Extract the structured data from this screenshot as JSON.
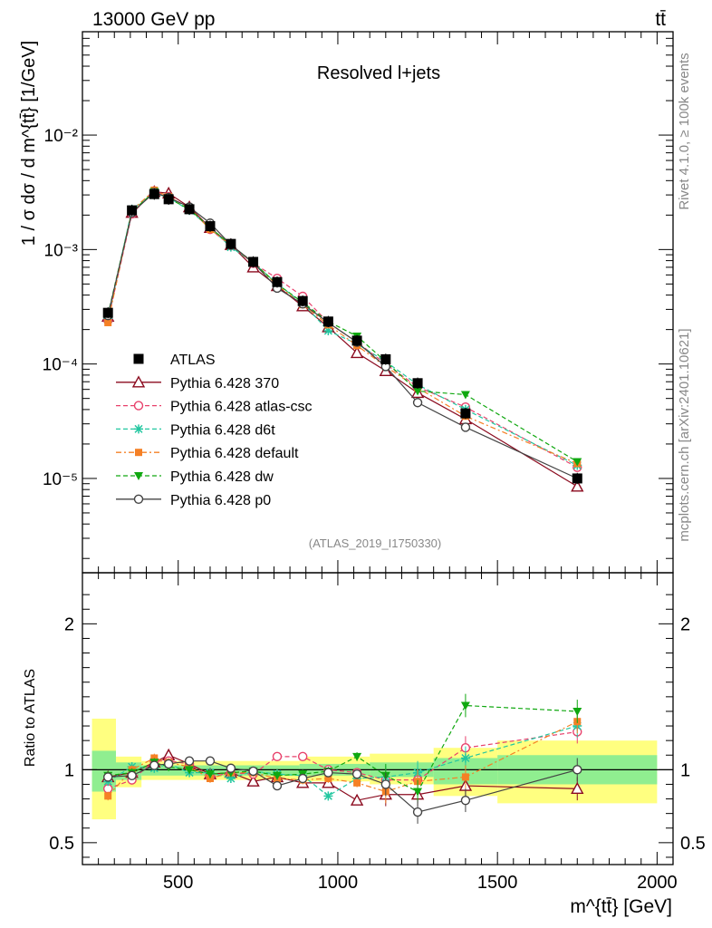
{
  "header": {
    "left": "13000 GeV pp",
    "right": "tt̄"
  },
  "side_labels": {
    "rivet": "Rivet 4.1.0, ≥ 100k events",
    "site": "mcplots.cern.ch [arXiv:2401.10621]"
  },
  "colors": {
    "atlas": "#000000",
    "p370": "#8b0a1e",
    "atlascsc": "#e8416b",
    "d6t": "#22c7a0",
    "default": "#f58025",
    "dw": "#10a810",
    "p0": "#444444",
    "band_inner": "#90ee90",
    "band_outer": "#ffff80"
  },
  "chart_data": [
    {
      "type": "line",
      "scale": "log",
      "title": "Resolved l+jets",
      "analysis_tag": "(ATLAS_2019_I1750330)",
      "ylabel": "1 / σ dσ / d m^{tt̄} [1/GeV]",
      "xlim": [
        200,
        2050
      ],
      "ylim": [
        1.5e-06,
        0.08
      ],
      "y_ticks": [
        {
          "value": 1e-05,
          "label": "10⁻⁵"
        },
        {
          "value": 0.0001,
          "label": "10⁻⁴"
        },
        {
          "value": 0.001,
          "label": "10⁻³"
        },
        {
          "value": 0.01,
          "label": "10⁻²"
        }
      ],
      "x": [
        280,
        355,
        425,
        470,
        535,
        600,
        665,
        735,
        810,
        890,
        970,
        1060,
        1150,
        1250,
        1400,
        1750
      ],
      "series": [
        {
          "name": "ATLAS",
          "key": "atlas",
          "style": "square",
          "values": [
            0.00028,
            0.0022,
            0.00305,
            0.00275,
            0.00225,
            0.0016,
            0.00112,
            0.00078,
            0.00052,
            0.000355,
            0.000235,
            0.00016,
            0.00011,
            6.8e-05,
            3.7e-05,
            1e-05
          ]
        },
        {
          "name": "Pythia 6.428 370",
          "key": "p370",
          "style": "triangle-open",
          "values": [
            0.00026,
            0.0021,
            0.0032,
            0.0031,
            0.00235,
            0.00155,
            0.0011,
            0.0007,
            0.00048,
            0.00032,
            0.00021,
            0.000125,
            8.7e-05,
            5.6e-05,
            3.3e-05,
            8.5e-06
          ]
        },
        {
          "name": "Pythia 6.428 atlas-csc",
          "key": "atlascsc",
          "style": "circle-open",
          "values": [
            0.00024,
            0.00205,
            0.00325,
            0.0029,
            0.0023,
            0.0015,
            0.00108,
            0.00076,
            0.00056,
            0.00039,
            0.00023,
            0.000155,
            0.0001,
            6.3e-05,
            4.2e-05,
            1.25e-05
          ]
        },
        {
          "name": "Pythia 6.428 d6t",
          "key": "d6t",
          "style": "star",
          "values": [
            0.00025,
            0.00225,
            0.0031,
            0.00285,
            0.0022,
            0.00155,
            0.00105,
            0.00077,
            0.0005,
            0.00034,
            0.000195,
            0.00015,
            0.000105,
            6.6e-05,
            4e-05,
            1.3e-05
          ]
        },
        {
          "name": "Pythia 6.428 default",
          "key": "default",
          "style": "square-small",
          "values": [
            0.00023,
            0.0022,
            0.0033,
            0.0029,
            0.0023,
            0.0015,
            0.0011,
            0.00076,
            0.00049,
            0.00033,
            0.00022,
            0.000145,
            9.5e-05,
            6.2e-05,
            3.5e-05,
            1.35e-05
          ]
        },
        {
          "name": "Pythia 6.428 dw",
          "key": "dw",
          "style": "triangle-down",
          "values": [
            0.00027,
            0.00215,
            0.0032,
            0.0028,
            0.00225,
            0.00155,
            0.0011,
            0.00077,
            0.0005,
            0.000345,
            0.000235,
            0.000175,
            0.000105,
            5.8e-05,
            5.4e-05,
            1.4e-05
          ]
        },
        {
          "name": "Pythia 6.428 p0",
          "key": "p0",
          "style": "circle-open",
          "values": [
            0.000265,
            0.0021,
            0.00315,
            0.00285,
            0.00235,
            0.0017,
            0.0011,
            0.00077,
            0.00046,
            0.000335,
            0.00023,
            0.000155,
            9.5e-05,
            4.6e-05,
            2.8e-05,
            1e-05
          ]
        }
      ]
    },
    {
      "type": "line",
      "scale": "linear",
      "ylabel": "Ratio to ATLAS",
      "xlabel": "m^{tt̄} [GeV]",
      "xlim": [
        200,
        2050
      ],
      "ylim": [
        0.35,
        2.35
      ],
      "x_ticks": [
        500,
        1000,
        1500,
        2000
      ],
      "y_ticks": [
        0.5,
        1,
        2
      ],
      "bins": [
        {
          "lo": 230,
          "hi": 305,
          "inner": [
            0.85,
            1.13
          ],
          "outer": [
            0.66,
            1.35
          ]
        },
        {
          "lo": 305,
          "hi": 385,
          "inner": [
            0.93,
            1.05
          ],
          "outer": [
            0.88,
            1.09
          ]
        },
        {
          "lo": 385,
          "hi": 880,
          "inner": [
            0.96,
            1.03
          ],
          "outer": [
            0.93,
            1.06
          ]
        },
        {
          "lo": 880,
          "hi": 1100,
          "inner": [
            0.96,
            1.04
          ],
          "outer": [
            0.92,
            1.09
          ]
        },
        {
          "lo": 1100,
          "hi": 1300,
          "inner": [
            0.95,
            1.05
          ],
          "outer": [
            0.9,
            1.11
          ]
        },
        {
          "lo": 1300,
          "hi": 1500,
          "inner": [
            0.9,
            1.08
          ],
          "outer": [
            0.82,
            1.15
          ]
        },
        {
          "lo": 1500,
          "hi": 2000,
          "inner": [
            0.9,
            1.1
          ],
          "outer": [
            0.77,
            1.2
          ]
        }
      ],
      "x": [
        280,
        355,
        425,
        470,
        535,
        600,
        665,
        735,
        810,
        890,
        970,
        1060,
        1150,
        1250,
        1400,
        1750
      ],
      "series": [
        {
          "name": "Pythia 6.428 370",
          "key": "p370",
          "style": "triangle-open",
          "values": [
            0.95,
            0.98,
            1.05,
            1.1,
            1.04,
            0.97,
            0.98,
            0.92,
            0.95,
            0.91,
            0.91,
            0.79,
            0.83,
            0.83,
            0.89,
            0.87
          ]
        },
        {
          "name": "Pythia 6.428 atlas-csc",
          "key": "atlascsc",
          "style": "circle-open",
          "values": [
            0.87,
            0.93,
            1.06,
            1.06,
            1.04,
            0.95,
            0.98,
            0.97,
            1.09,
            1.09,
            1.0,
            0.98,
            0.93,
            0.93,
            1.15,
            1.26
          ]
        },
        {
          "name": "Pythia 6.428 d6t",
          "key": "d6t",
          "style": "star",
          "values": [
            0.92,
            1.02,
            1.01,
            1.04,
            0.98,
            0.98,
            0.94,
            0.99,
            0.97,
            0.96,
            0.82,
            0.94,
            0.95,
            0.98,
            1.08,
            1.3
          ]
        },
        {
          "name": "Pythia 6.428 default",
          "key": "default",
          "style": "square-small",
          "values": [
            0.82,
            1.0,
            1.08,
            1.05,
            1.02,
            0.94,
            0.98,
            0.98,
            0.94,
            0.93,
            0.94,
            0.91,
            0.85,
            0.92,
            0.95,
            1.33
          ]
        },
        {
          "name": "Pythia 6.428 dw",
          "key": "dw",
          "style": "triangle-down",
          "values": [
            0.96,
            0.98,
            1.05,
            1.02,
            1.0,
            0.97,
            0.98,
            0.99,
            0.96,
            0.97,
            0.99,
            1.09,
            0.96,
            0.85,
            1.44,
            1.4
          ]
        },
        {
          "name": "Pythia 6.428 p0",
          "key": "p0",
          "style": "circle-open",
          "values": [
            0.95,
            0.96,
            1.03,
            1.04,
            1.06,
            1.06,
            1.01,
            0.99,
            0.89,
            0.94,
            0.98,
            0.97,
            0.9,
            0.71,
            0.79,
            1.0
          ]
        }
      ]
    }
  ]
}
